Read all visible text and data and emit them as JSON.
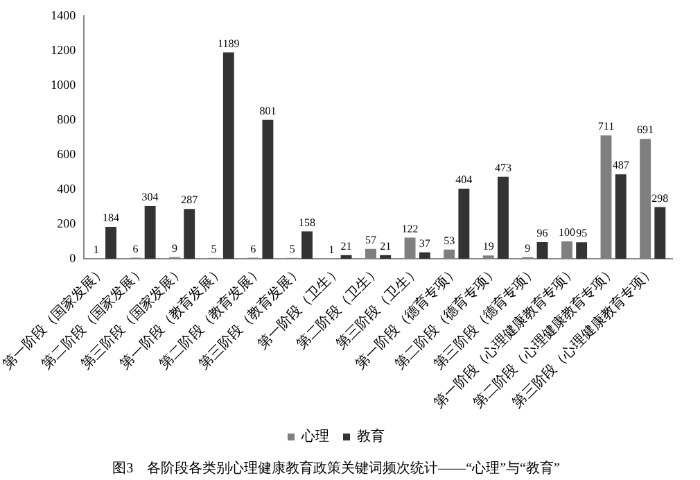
{
  "chart_data": {
    "type": "bar",
    "title": "图3　各阶段各类别心理健康教育政策关键词频次统计——“心理”与“教育”",
    "categories": [
      "第一阶段（国家发展）",
      "第二阶段（国家发展）",
      "第三阶段（国家发展）",
      "第一阶段（教育发展）",
      "第二阶段（教育发展）",
      "第三阶段（教育发展）",
      "第一阶段（卫生）",
      "第二阶段（卫生）",
      "第三阶段（卫生）",
      "第一阶段（德育专项）",
      "第二阶段（德育专项）",
      "第三阶段（德育专项）",
      "第一阶段（心理健康教育专项）",
      "第二阶段（心理健康教育专项）",
      "第三阶段（心理健康教育专项）"
    ],
    "series": [
      {
        "name": "心理",
        "color": "#7f7f7f",
        "values": [
          1,
          6,
          9,
          5,
          6,
          5,
          1,
          57,
          122,
          53,
          19,
          9,
          100,
          711,
          691
        ]
      },
      {
        "name": "教育",
        "color": "#333333",
        "values": [
          184,
          304,
          287,
          1189,
          801,
          158,
          21,
          21,
          37,
          404,
          473,
          96,
          95,
          487,
          298
        ]
      }
    ],
    "ylim": [
      0,
      1400
    ],
    "yticks": [
      0,
      200,
      400,
      600,
      800,
      1000,
      1200,
      1400
    ],
    "grid": false,
    "legend": "bottom",
    "data_labels": true
  }
}
